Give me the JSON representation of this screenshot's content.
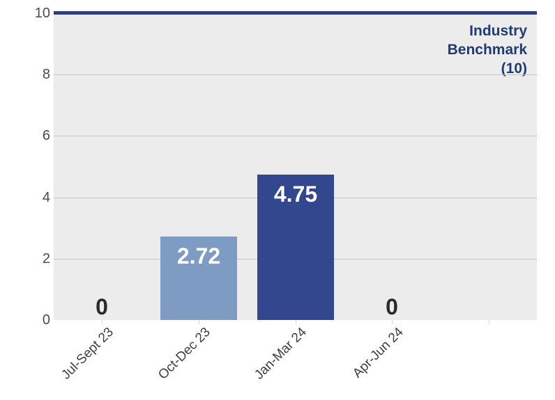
{
  "chart_data": {
    "type": "bar",
    "title": "",
    "xlabel": "",
    "ylabel": "",
    "categories": [
      "Jul-Sept 23",
      "Oct-Dec 23",
      "Jan-Mar 24",
      "Apr-Jun 24"
    ],
    "values": [
      0,
      2.72,
      4.75,
      0
    ],
    "value_labels": [
      "0",
      "2.72",
      "4.75",
      "0"
    ],
    "bar_colors": [
      null,
      "#7E9CC3",
      "#33478F",
      null
    ],
    "value_label_colors": [
      "#2A2A2A",
      "#FFFFFF",
      "#FFFFFF",
      "#2A2A2A"
    ],
    "ylim": [
      0,
      10
    ],
    "yticks": [
      0,
      2,
      4,
      6,
      8,
      10
    ],
    "grid": "horizontal",
    "legend": "none",
    "num_category_slots": 5,
    "plot_bg_color": "#ECECEC",
    "gridline_color": "#C5C5C5",
    "tick_color": "#D8D8D8",
    "y_label_color": "#4A4A4A",
    "x_label_color": "#3F3F3F",
    "benchmark": {
      "value": 10,
      "label_text": "Industry Benchmark (10)",
      "label_lines": [
        "Industry",
        "Benchmark",
        "(10)"
      ],
      "line_color": "#2B4080",
      "text_color": "#203A72"
    }
  }
}
